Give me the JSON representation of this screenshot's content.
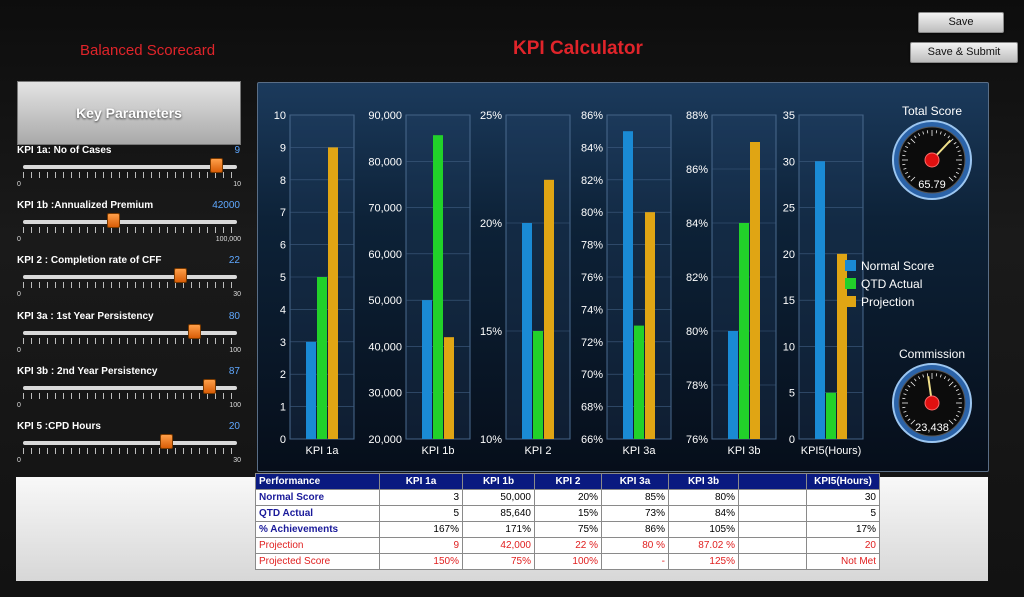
{
  "header": {
    "brand": "Balanced Scorecard",
    "title": "KPI Calculator",
    "save_label": "Save",
    "save_submit_label": "Save & Submit"
  },
  "params": {
    "title": "Key Parameters",
    "sliders": [
      {
        "label": "KPI 1a: No of Cases",
        "value": "9",
        "min": "0",
        "max": "10",
        "level": 0.9
      },
      {
        "label": "KPI 1b :Annualized Premium",
        "value": "42000",
        "min": "0",
        "max": "100,000",
        "level": 0.42
      },
      {
        "label": "KPI 2 : Completion rate of CFF",
        "value": "22",
        "min": "0",
        "max": "30",
        "level": 0.733
      },
      {
        "label": "KPI 3a : 1st Year Persistency",
        "value": "80",
        "min": "0",
        "max": "100",
        "level": 0.8
      },
      {
        "label": "KPI 3b : 2nd Year Persistency",
        "value": "87",
        "min": "0",
        "max": "100",
        "level": 0.87
      },
      {
        "label": "KPI 5 :CPD Hours",
        "value": "20",
        "min": "0",
        "max": "30",
        "level": 0.667
      }
    ]
  },
  "legend": [
    {
      "label": "Normal Score",
      "color": "#1a8ad4"
    },
    {
      "label": "QTD Actual",
      "color": "#22d12a"
    },
    {
      "label": "Projection",
      "color": "#e0a514"
    }
  ],
  "gauges": [
    {
      "title": "Total Score",
      "value": "65.79",
      "level": 0.66
    },
    {
      "title": "Commission",
      "value": "23,438",
      "level": 0.47
    }
  ],
  "chart_data": [
    {
      "type": "bar",
      "categories": [
        "KPI 1a"
      ],
      "ylim": [
        0,
        10
      ],
      "yticks": [
        "0",
        "1",
        "2",
        "3",
        "4",
        "5",
        "6",
        "7",
        "8",
        "9",
        "10"
      ],
      "series": [
        {
          "name": "Normal Score",
          "values": [
            3
          ]
        },
        {
          "name": "QTD Actual",
          "values": [
            5
          ]
        },
        {
          "name": "Projection",
          "values": [
            9
          ]
        }
      ]
    },
    {
      "type": "bar",
      "categories": [
        "KPI 1b"
      ],
      "ylim": [
        20000,
        90000
      ],
      "yticks": [
        "20,000",
        "30,000",
        "40,000",
        "50,000",
        "60,000",
        "70,000",
        "80,000",
        "90,000"
      ],
      "series": [
        {
          "name": "Normal Score",
          "values": [
            50000
          ]
        },
        {
          "name": "QTD Actual",
          "values": [
            85640
          ]
        },
        {
          "name": "Projection",
          "values": [
            42000
          ]
        }
      ]
    },
    {
      "type": "bar",
      "categories": [
        "KPI 2"
      ],
      "ylim": [
        10,
        25
      ],
      "yticks": [
        "10%",
        "15%",
        "20%",
        "25%"
      ],
      "series": [
        {
          "name": "Normal Score",
          "values": [
            20
          ]
        },
        {
          "name": "QTD Actual",
          "values": [
            15
          ]
        },
        {
          "name": "Projection",
          "values": [
            22
          ]
        }
      ]
    },
    {
      "type": "bar",
      "categories": [
        "KPI 3a"
      ],
      "ylim": [
        66,
        86
      ],
      "yticks": [
        "66%",
        "68%",
        "70%",
        "72%",
        "74%",
        "76%",
        "78%",
        "80%",
        "82%",
        "84%",
        "86%"
      ],
      "series": [
        {
          "name": "Normal Score",
          "values": [
            85
          ]
        },
        {
          "name": "QTD Actual",
          "values": [
            73
          ]
        },
        {
          "name": "Projection",
          "values": [
            80
          ]
        }
      ]
    },
    {
      "type": "bar",
      "categories": [
        "KPI 3b"
      ],
      "ylim": [
        76,
        88
      ],
      "yticks": [
        "76%",
        "78%",
        "80%",
        "82%",
        "84%",
        "86%",
        "88%"
      ],
      "series": [
        {
          "name": "Normal Score",
          "values": [
            80
          ]
        },
        {
          "name": "QTD Actual",
          "values": [
            84
          ]
        },
        {
          "name": "Projection",
          "values": [
            87
          ]
        }
      ]
    },
    {
      "type": "bar",
      "categories": [
        "KPI5(Hours)"
      ],
      "ylim": [
        0,
        35
      ],
      "yticks": [
        "0",
        "5",
        "10",
        "15",
        "20",
        "25",
        "30",
        "35"
      ],
      "series": [
        {
          "name": "Normal Score",
          "values": [
            30
          ]
        },
        {
          "name": "QTD Actual",
          "values": [
            5
          ]
        },
        {
          "name": "Projection",
          "values": [
            20
          ]
        }
      ]
    }
  ],
  "table": {
    "headers": [
      "Performance",
      "KPI 1a",
      "KPI 1b",
      "KPI 2",
      "KPI 3a",
      "KPI 3b",
      "",
      "KPI5(Hours)"
    ],
    "rows": [
      {
        "label": "Normal Score",
        "cells": [
          "3",
          "50,000",
          "20%",
          "85%",
          "80%",
          "",
          "30"
        ],
        "red": false
      },
      {
        "label": "QTD Actual",
        "cells": [
          "5",
          "85,640",
          "15%",
          "73%",
          "84%",
          "",
          "5"
        ],
        "red": false
      },
      {
        "label": "% Achievements",
        "cells": [
          "167%",
          "171%",
          "75%",
          "86%",
          "105%",
          "",
          "17%"
        ],
        "red": false
      },
      {
        "label": "Projection",
        "cells": [
          "9",
          "42,000",
          "22 %",
          "80 %",
          "87.02 %",
          "",
          "20"
        ],
        "red": true
      },
      {
        "label": "Projected Score",
        "cells": [
          "150%",
          "75%",
          "100%",
          "-",
          "125%",
          "",
          "Not Met"
        ],
        "red": true
      }
    ]
  }
}
